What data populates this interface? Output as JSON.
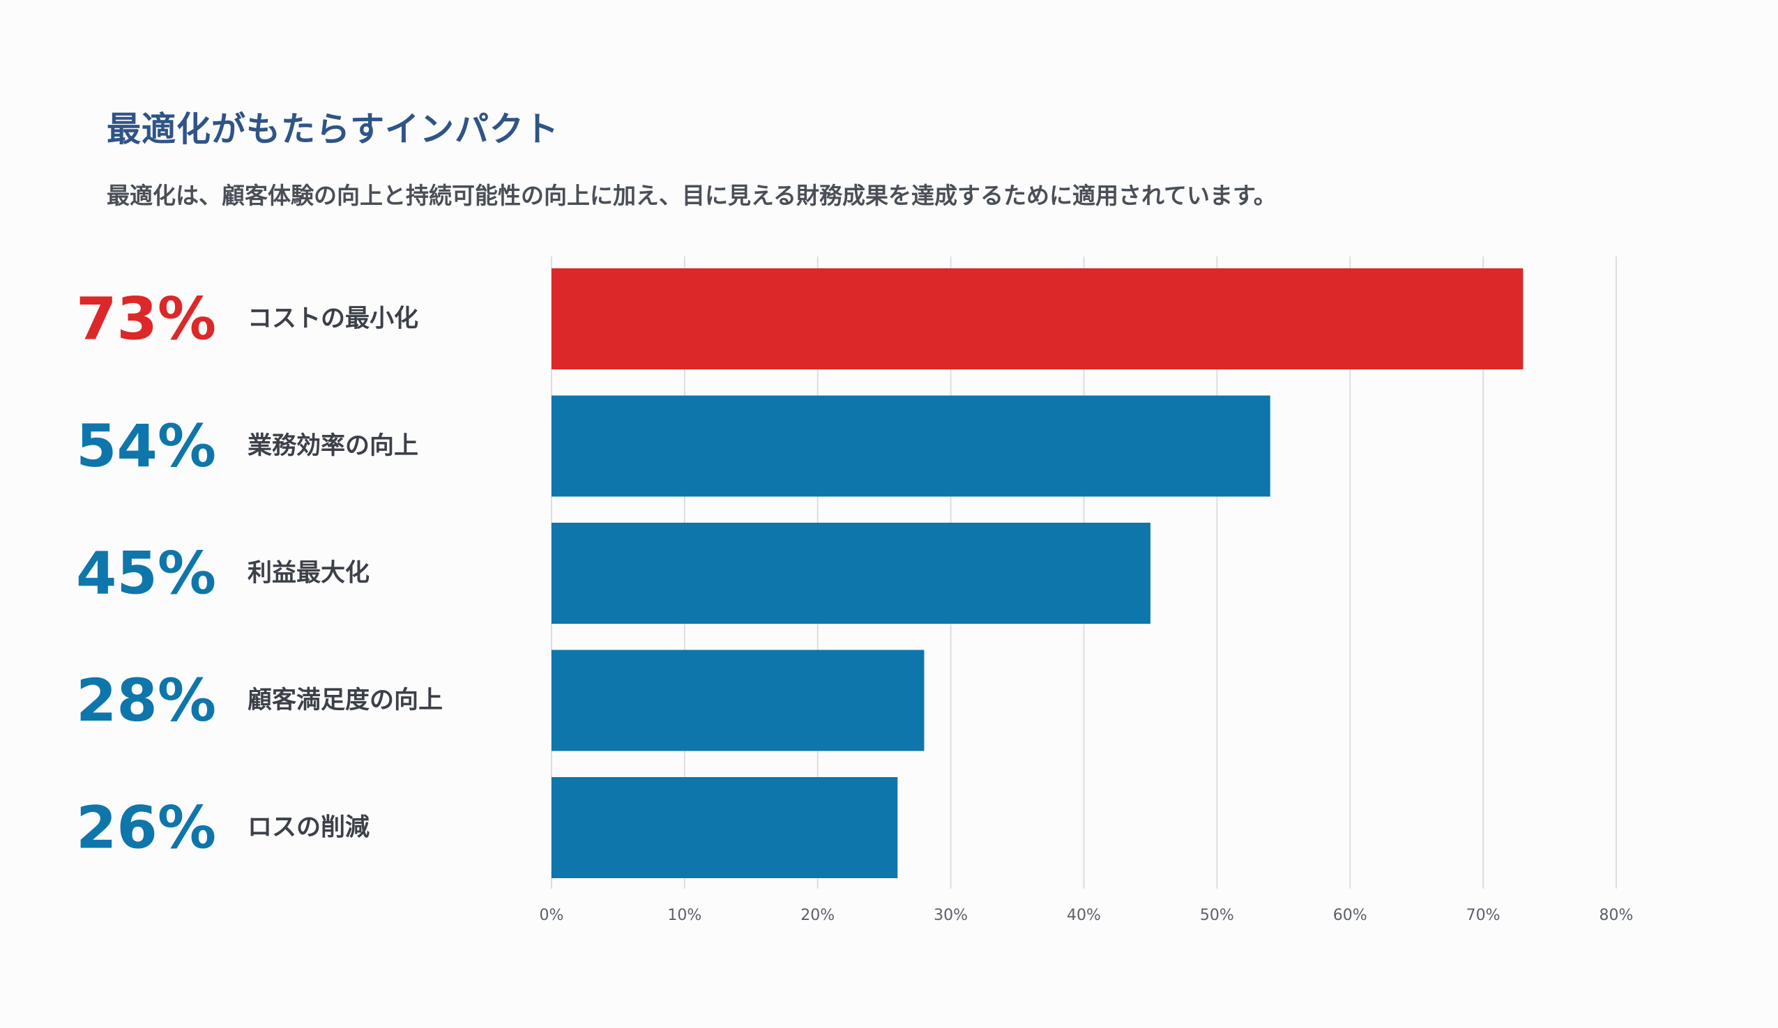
{
  "header": {
    "title": "最適化がもたらすインパクト",
    "subtitle": "最適化は、顧客体験の向上と持続可能性の向上に加え、目に見える財務成果を達成するために適用されています。"
  },
  "colors": {
    "highlight": "#dc2828",
    "bar": "#0e76ab",
    "grid": "#dcdde2"
  },
  "chart_data": {
    "type": "bar",
    "orientation": "horizontal",
    "categories": [
      "コストの最小化",
      "業務効率の向上",
      "利益最大化",
      "顧客満足度の向上",
      "ロスの削減"
    ],
    "values": [
      73,
      54,
      45,
      28,
      26
    ],
    "value_labels": [
      "73%",
      "54%",
      "45%",
      "28%",
      "26%"
    ],
    "highlight_index": 0,
    "xlim": [
      0,
      80
    ],
    "xticks": [
      0,
      10,
      20,
      30,
      40,
      50,
      60,
      70,
      80
    ],
    "xtick_labels": [
      "0%",
      "10%",
      "20%",
      "30%",
      "40%",
      "50%",
      "60%",
      "70%",
      "80%"
    ],
    "grid": true,
    "legend": "none"
  }
}
